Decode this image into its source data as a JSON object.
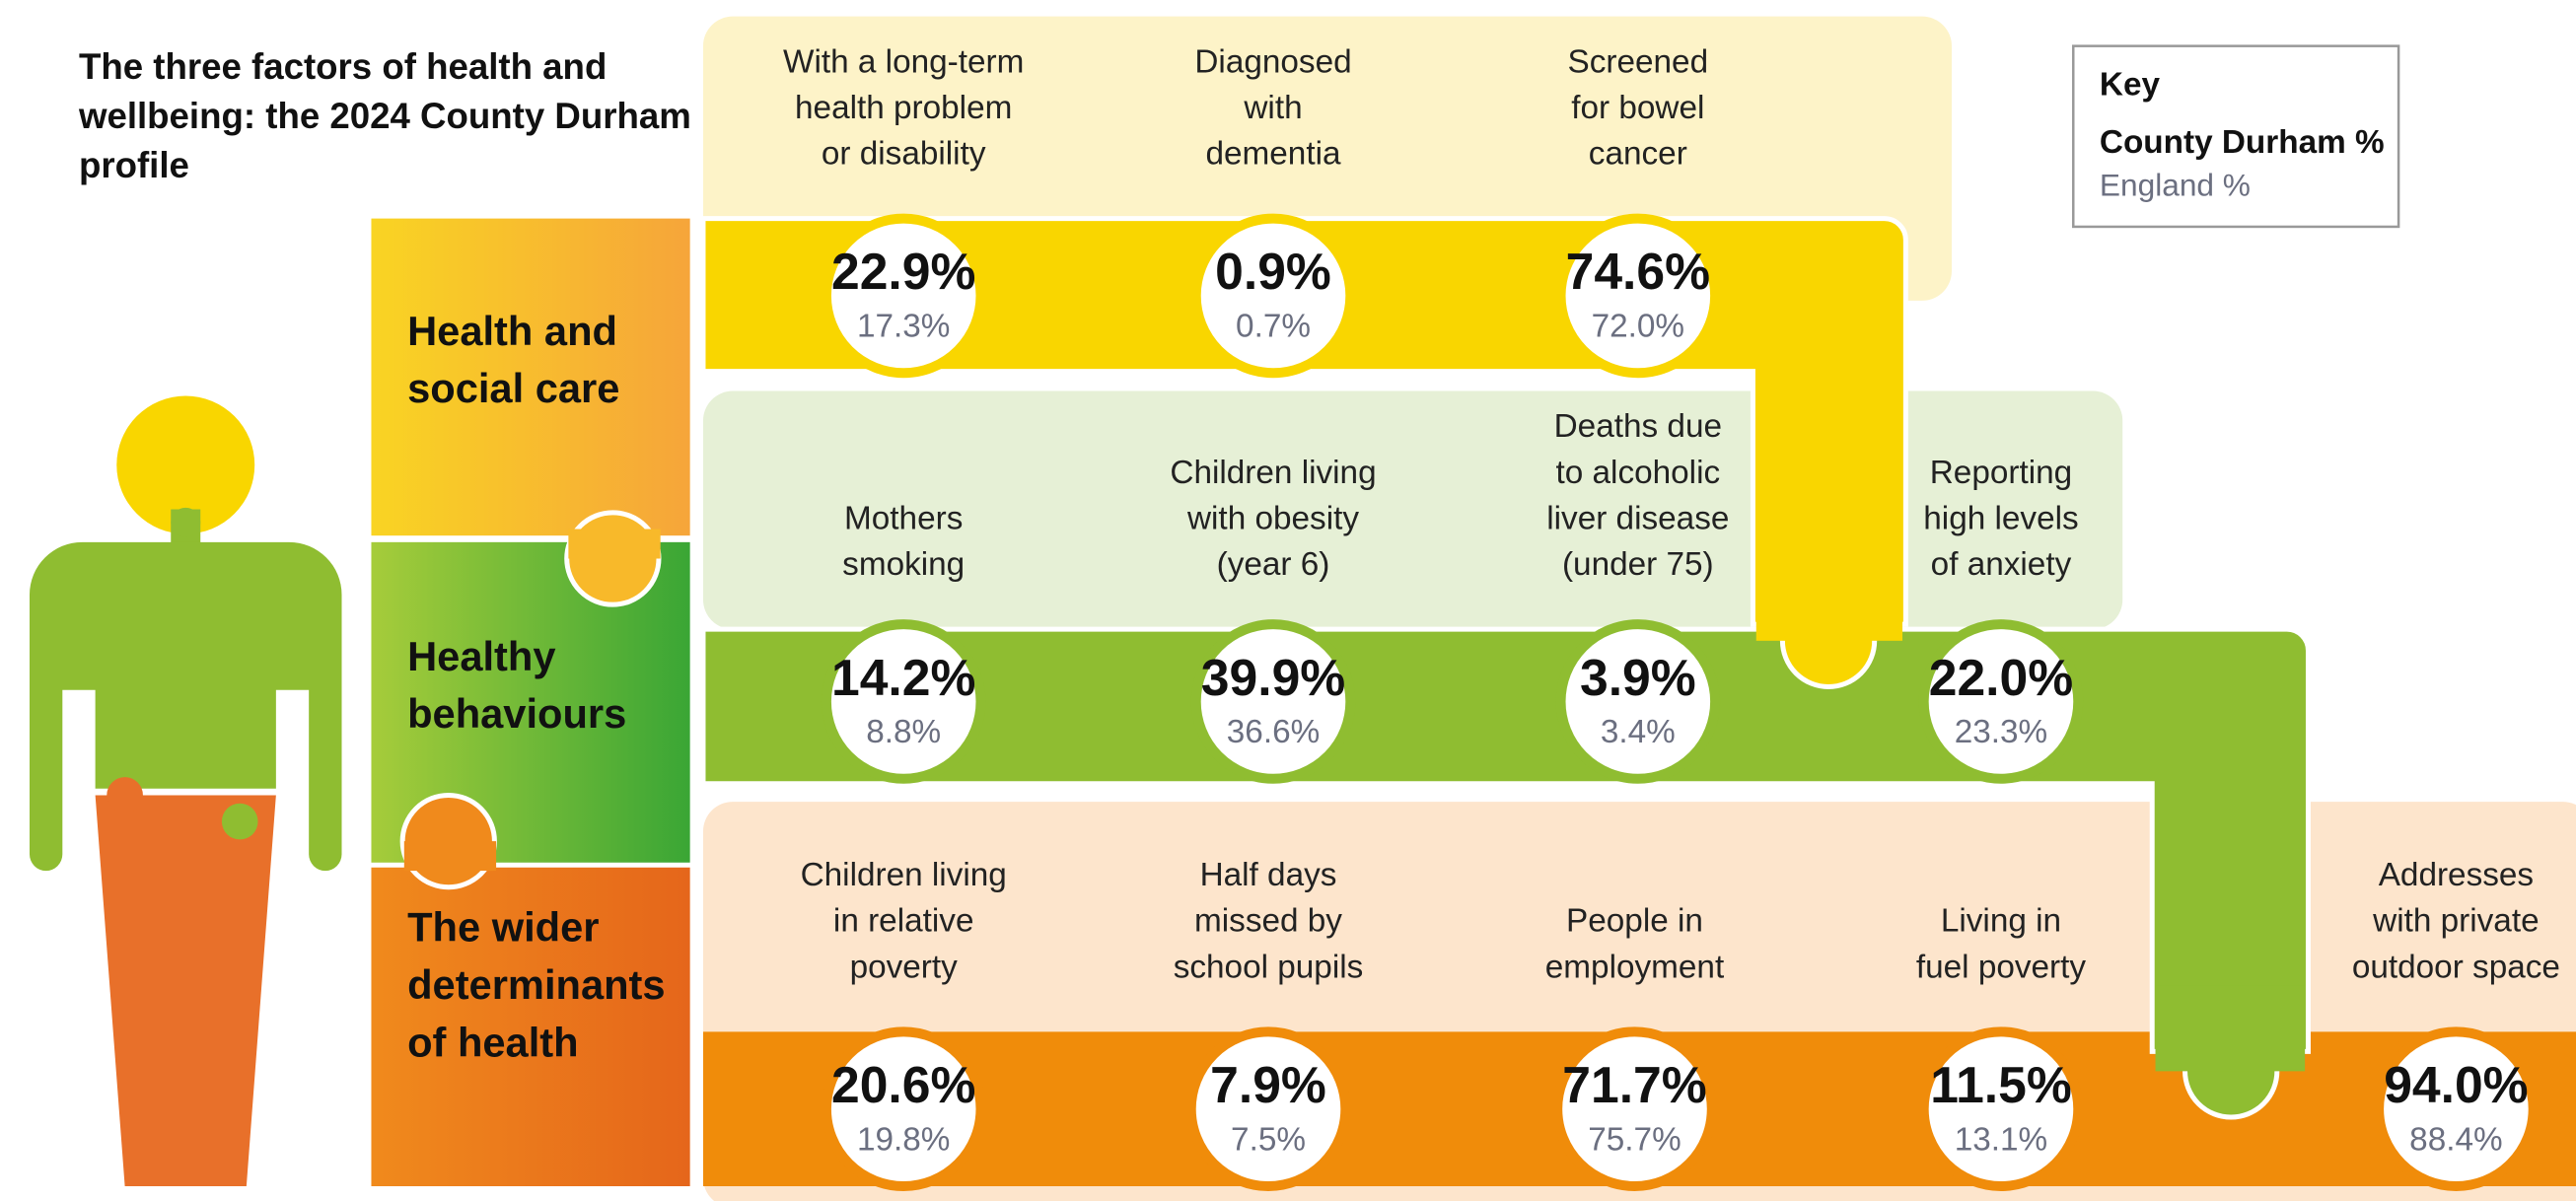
{
  "title_lines": [
    "The three factors of health and",
    "wellbeing: the 2024 County Durham",
    "profile"
  ],
  "key": {
    "title": "Key",
    "county": "County Durham %",
    "england": "England %"
  },
  "rows": [
    {
      "label_lines": [
        "Health and",
        "social care"
      ],
      "items": [
        {
          "label_lines": [
            "With a long-term",
            "health problem",
            "or disability"
          ],
          "county": "22.9%",
          "england": "17.3%"
        },
        {
          "label_lines": [
            "Diagnosed",
            "with",
            "dementia"
          ],
          "county": "0.9%",
          "england": "0.7%"
        },
        {
          "label_lines": [
            "Screened",
            "for bowel",
            "cancer"
          ],
          "county": "74.6%",
          "england": "72.0%"
        }
      ]
    },
    {
      "label_lines": [
        "Healthy",
        "behaviours"
      ],
      "items": [
        {
          "label_lines": [
            "Mothers",
            "smoking"
          ],
          "county": "14.2%",
          "england": "8.8%"
        },
        {
          "label_lines": [
            "Children living",
            "with obesity",
            "(year 6)"
          ],
          "county": "39.9%",
          "england": "36.6%"
        },
        {
          "label_lines": [
            "Deaths due",
            "to alcoholic",
            "liver disease",
            "(under 75)"
          ],
          "county": "3.9%",
          "england": "3.4%"
        },
        {
          "label_lines": [
            "Reporting",
            "high levels",
            "of anxiety"
          ],
          "county": "22.0%",
          "england": "23.3%"
        }
      ]
    },
    {
      "label_lines": [
        "The wider",
        "determinants",
        "of health"
      ],
      "items": [
        {
          "label_lines": [
            "Children living",
            "in relative",
            "poverty"
          ],
          "county": "20.6%",
          "england": "19.8%"
        },
        {
          "label_lines": [
            "Half days",
            "missed by",
            "school pupils"
          ],
          "county": "7.9%",
          "england": "7.5%"
        },
        {
          "label_lines": [
            "People in",
            "employment"
          ],
          "county": "71.7%",
          "england": "75.7%"
        },
        {
          "label_lines": [
            "Living in",
            "fuel poverty"
          ],
          "county": "11.5%",
          "england": "13.1%"
        },
        {
          "label_lines": [
            "Addresses",
            "with private",
            "outdoor space"
          ],
          "county": "94.0%",
          "england": "88.4%"
        }
      ]
    }
  ]
}
